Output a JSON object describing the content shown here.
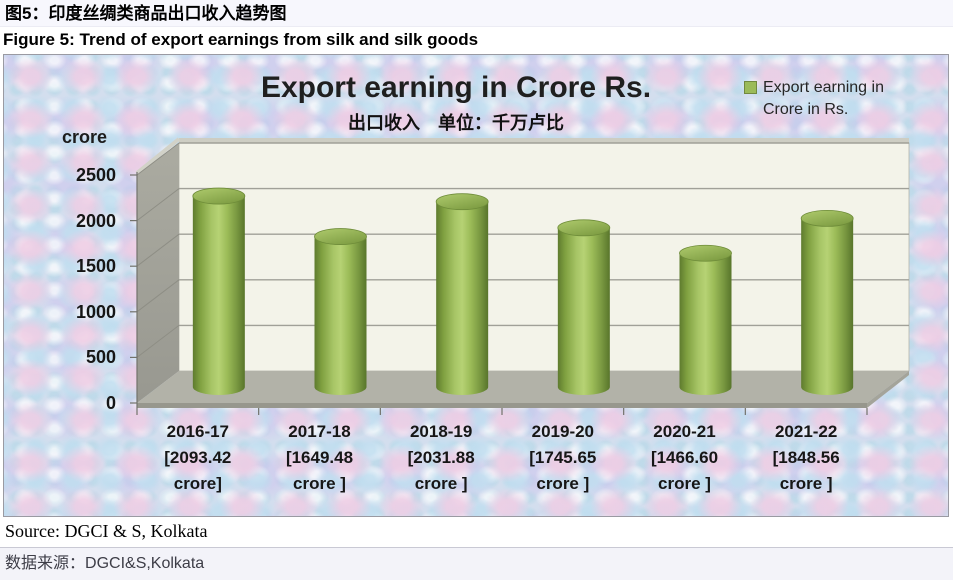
{
  "page": {
    "figure_caption_zh": "图5：印度丝绸类商品出口收入趋势图",
    "figure_caption_en": "Figure 5: Trend of export earnings from silk and silk goods",
    "source_en": "Source: DGCI & S, Kolkata",
    "source_zh_label": "数据来源：",
    "source_zh_value": "DGCI&S,Kolkata"
  },
  "chart_data": {
    "type": "bar",
    "style": "3d-cylinder",
    "title": "Export earning in Crore Rs.",
    "subtitle": "出口收入　单位：千万卢比",
    "y_axis_unit": "crore",
    "legend_label": "Export earning in Crore in Rs.",
    "legend_position": "top-right",
    "legend_swatch_color": "#9BBB59",
    "categories": [
      "2016-17",
      "2017-18",
      "2018-19",
      "2019-20",
      "2020-21",
      "2021-22"
    ],
    "values": [
      2093.42,
      1649.48,
      2031.88,
      1745.65,
      1466.6,
      1848.56
    ],
    "x_tick_lines": [
      [
        "2016-17",
        "[2093.42",
        "crore]"
      ],
      [
        "2017-18",
        "[1649.48",
        "crore ]"
      ],
      [
        "2018-19",
        "[2031.88",
        "crore ]"
      ],
      [
        "2019-20",
        "[1745.65",
        "crore ]"
      ],
      [
        "2020-21",
        "[1466.60",
        "crore ]"
      ],
      [
        "2021-22",
        "[1848.56",
        "crore ]"
      ]
    ],
    "yticks": [
      0,
      500,
      1000,
      1500,
      2000,
      2500
    ],
    "ylim": [
      0,
      2500
    ],
    "grid": true,
    "bar_color": "#9BBB59",
    "plot_bg": "#F3F3E9",
    "wall_color": "#A5A59B",
    "floor_color": "#B2B2A8",
    "gridline_color": "#A0A098"
  }
}
